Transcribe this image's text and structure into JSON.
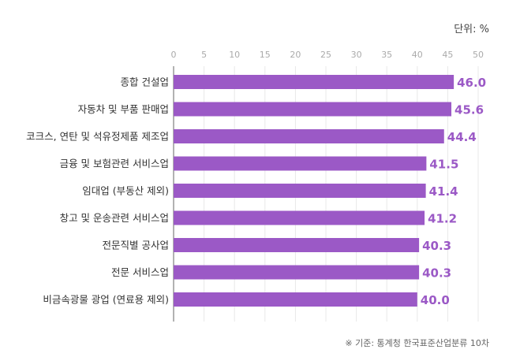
{
  "unit_label": "단위: %",
  "source_note": "※ 기준: 통계청 한국표준산업분류 10차",
  "colors": {
    "bar": "#9b59c6",
    "value": "#9b59c6",
    "axis": "#999999",
    "grid": "#e8e8e8"
  },
  "chart_data": {
    "type": "bar",
    "orientation": "horizontal",
    "categories": [
      "종합 건설업",
      "자동차 및 부품 판매업",
      "코크스, 연탄 및 석유정제품 제조업",
      "금융 및 보험관련 서비스업",
      "임대업 (부동산 제외)",
      "창고 및 운송관련 서비스업",
      "전문직별 공사업",
      "전문 서비스업",
      "비금속광물 광업 (연료용 제외)"
    ],
    "values": [
      46.0,
      45.6,
      44.4,
      41.5,
      41.4,
      41.2,
      40.3,
      40.3,
      40.0
    ],
    "value_labels": [
      "46.0",
      "45.6",
      "44.4",
      "41.5",
      "41.4",
      "41.2",
      "40.3",
      "40.3",
      "40.0"
    ],
    "xlim": [
      0,
      50
    ],
    "ticks": [
      "0",
      "5",
      "10",
      "15",
      "20",
      "25",
      "30",
      "35",
      "40",
      "45",
      "50"
    ],
    "grid": true
  }
}
